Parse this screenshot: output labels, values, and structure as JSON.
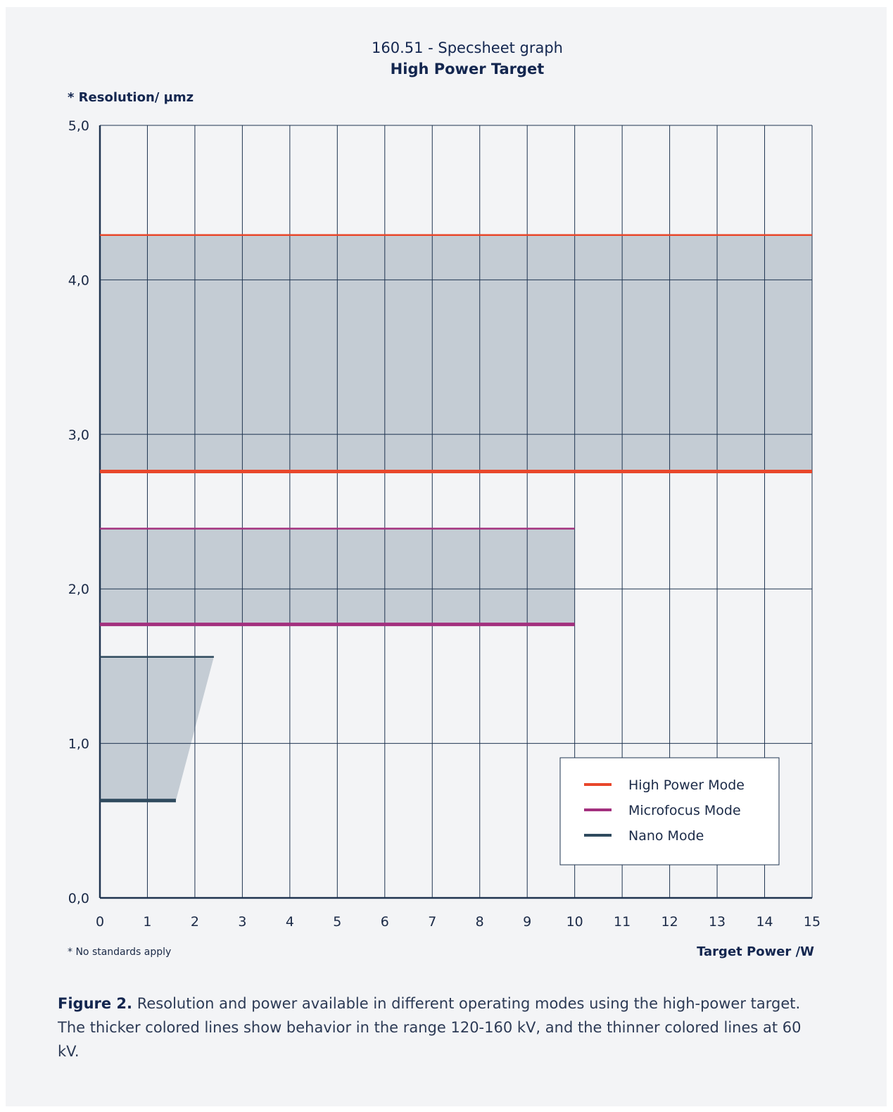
{
  "chart_data": {
    "type": "line",
    "supertitle": "160.51 - Specsheet graph",
    "title": "High Power Target",
    "ylabel": "* Resolution/ µmz",
    "xlabel": "Target Power /W",
    "footnote": "* No standards apply",
    "xlim": [
      0,
      15
    ],
    "ylim": [
      0,
      5
    ],
    "x_ticks": [
      "0",
      "1",
      "2",
      "3",
      "4",
      "5",
      "6",
      "7",
      "8",
      "9",
      "10",
      "11",
      "12",
      "13",
      "14",
      "15"
    ],
    "y_ticks": [
      {
        "value": 0,
        "label": "0,0"
      },
      {
        "value": 1,
        "label": "1,0"
      },
      {
        "value": 2,
        "label": "2,0"
      },
      {
        "value": 3,
        "label": "3,0"
      },
      {
        "value": 4,
        "label": "4,0"
      },
      {
        "value": 5,
        "label": "5,0"
      }
    ],
    "grid": "on",
    "regions": [
      {
        "name": "High Power Mode",
        "polygon": [
          [
            0,
            2.76
          ],
          [
            15,
            2.76
          ],
          [
            15,
            4.29
          ],
          [
            0,
            4.29
          ]
        ]
      },
      {
        "name": "Microfocus Mode",
        "polygon": [
          [
            0,
            1.77
          ],
          [
            10,
            1.77
          ],
          [
            10,
            2.39
          ],
          [
            0,
            2.39
          ]
        ]
      },
      {
        "name": "Nano Mode",
        "polygon": [
          [
            0,
            0.63
          ],
          [
            1.6,
            0.63
          ],
          [
            2.4,
            1.56
          ],
          [
            0,
            1.56
          ]
        ]
      }
    ],
    "series": [
      {
        "name": "High Power Mode",
        "color": "#e8472b",
        "lines": [
          {
            "range": "120-160 kV",
            "weight": "thick",
            "x": [
              0,
              15
            ],
            "y": [
              2.76,
              2.76
            ]
          },
          {
            "range": "60 kV",
            "weight": "thin",
            "x": [
              0,
              15
            ],
            "y": [
              4.29,
              4.29
            ]
          }
        ]
      },
      {
        "name": "Microfocus Mode",
        "color": "#a3307e",
        "lines": [
          {
            "range": "120-160 kV",
            "weight": "thick",
            "x": [
              0,
              10
            ],
            "y": [
              1.77,
              1.77
            ]
          },
          {
            "range": "60 kV",
            "weight": "thin",
            "x": [
              0,
              10
            ],
            "y": [
              2.39,
              2.39
            ]
          }
        ]
      },
      {
        "name": "Nano Mode",
        "color": "#2f4a5e",
        "lines": [
          {
            "range": "120-160 kV",
            "weight": "thick",
            "x": [
              0,
              1.6
            ],
            "y": [
              0.63,
              0.63
            ]
          },
          {
            "range": "60 kV",
            "weight": "thin",
            "x": [
              0,
              2.4
            ],
            "y": [
              1.56,
              1.56
            ]
          }
        ]
      }
    ],
    "legend": {
      "position": "bottom-right",
      "entries": [
        "High Power Mode",
        "Microfocus Mode",
        "Nano Mode"
      ]
    },
    "colors": {
      "grid": "#1f3450",
      "region_fill": "#c4ccd4",
      "axis": "#1f3450"
    }
  },
  "caption": {
    "label": "Figure 2.",
    "text": " Resolution and power available in different operating modes using the high-power target. The thicker colored lines show behavior in the range 120-160 kV, and the thinner colored lines at 60 kV."
  }
}
